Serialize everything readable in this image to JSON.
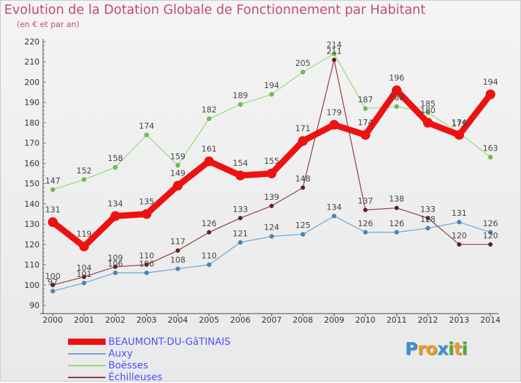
{
  "title": "Evolution de la Dotation Globale de Fonctionnement par Habitant",
  "subtitle": "(en € et par an)",
  "logo": {
    "text": "Proxiti",
    "letters": [
      "P",
      "r",
      "o",
      "x",
      "i",
      "t",
      "i"
    ],
    "colors": [
      "#3a8fd6",
      "#f29a1f",
      "#f29a1f",
      "#3a8fd6",
      "#4cb13a",
      "#f29a1f",
      "#4cb13a"
    ]
  },
  "chart_data": {
    "type": "line",
    "x": [
      "2000",
      "2001",
      "2002",
      "2003",
      "2004",
      "2005",
      "2006",
      "2007",
      "2008",
      "2009",
      "2010",
      "2011",
      "2012",
      "2013",
      "2014"
    ],
    "ylim": [
      90,
      220
    ],
    "yticks": [
      90,
      100,
      110,
      120,
      130,
      140,
      150,
      160,
      170,
      180,
      190,
      200,
      210,
      220
    ],
    "grid": false,
    "legend_position": "bottom-left",
    "series": [
      {
        "name": "BEAUMONT-DU-GâTINAIS",
        "color": "#ee1111",
        "marker_color": "#ee1111",
        "values": [
          131,
          119,
          134,
          135,
          149,
          161,
          154,
          155,
          171,
          179,
          174,
          196,
          180,
          174,
          194
        ]
      },
      {
        "name": "Auxy",
        "color": "#6aa2d4",
        "marker_color": "#3f86c8",
        "values": [
          97,
          101,
          106,
          106,
          108,
          110,
          121,
          124,
          125,
          134,
          126,
          126,
          128,
          131,
          126
        ]
      },
      {
        "name": "Boësses",
        "color": "#8fdc6f",
        "marker_color": "#6cc63f",
        "values": [
          147,
          152,
          158,
          174,
          159,
          182,
          189,
          194,
          205,
          214,
          187,
          188,
          185,
          175,
          163
        ]
      },
      {
        "name": "Échilleuses",
        "color": "#8a3a3a",
        "marker_color": "#6e1616",
        "values": [
          100,
          104,
          109,
          110,
          117,
          126,
          133,
          139,
          148,
          211,
          137,
          138,
          133,
          120,
          120
        ]
      }
    ]
  }
}
